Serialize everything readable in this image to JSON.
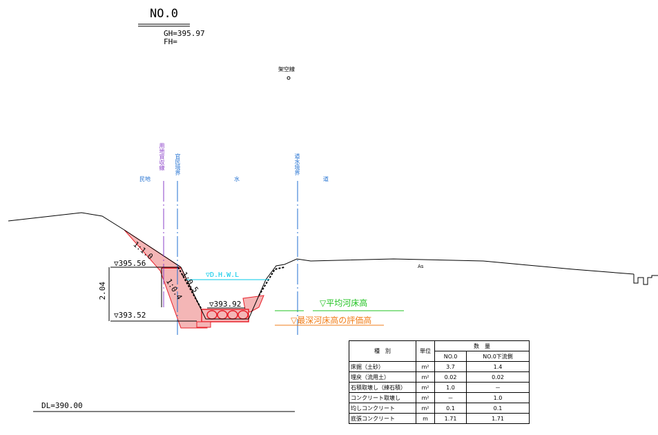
{
  "header": {
    "section": "NO.0",
    "gh": "GH=395.97",
    "fh": "FH="
  },
  "labels": {
    "overhead_line": "架空線",
    "private_land": "民地",
    "acquisition_line": "用地買収線",
    "public_private_boundary": "官民境界",
    "water": "水",
    "road_water_boundary": "道水境界",
    "road": "道",
    "asphalt": "As",
    "slope_1": "1:1.0",
    "slope_2": "1:0.5",
    "slope_3": "1:0.4",
    "dhwl": "▽D.H.W.L",
    "elev_top": "▽395.56",
    "elev_mid": "▽393.92",
    "elev_bottom": "▽393.52",
    "height": "2.04",
    "avg_bed": "▽平均河床高",
    "deepest_bed": "▽最深河床高の評価高",
    "datum": "DL=390.00"
  },
  "colors": {
    "fill_red": "#f4b6b6",
    "line_red": "#e8202a",
    "cyan": "#00c8e8",
    "blue": "#1f6fd0",
    "purple": "#8a3fc8",
    "green": "#22c322",
    "orange": "#f07d18"
  },
  "table": {
    "header_type": "種　別",
    "header_unit": "単位",
    "header_qty": "数　量",
    "col_a": "NO.0",
    "col_b": "NO.0下流側",
    "rows": [
      {
        "name": "床掘（土砂）",
        "unit": "m²",
        "a": "3.7",
        "b": "1.4"
      },
      {
        "name": "埋戻（流用土）",
        "unit": "m²",
        "a": "0.02",
        "b": "0.02"
      },
      {
        "name": "石積取壊し（練石積）",
        "unit": "m²",
        "a": "1.0",
        "b": "－"
      },
      {
        "name": "コンクリート取壊し",
        "unit": "m²",
        "a": "－",
        "b": "1.0"
      },
      {
        "name": "均しコンクリート",
        "unit": "m²",
        "a": "0.1",
        "b": "0.1"
      },
      {
        "name": "底張コンクリート",
        "unit": "m",
        "a": "1.71",
        "b": "1.71"
      }
    ]
  }
}
